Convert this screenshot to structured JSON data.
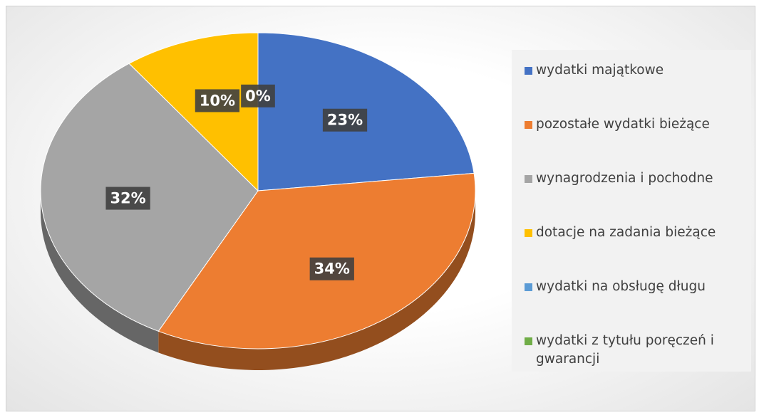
{
  "chart_data": {
    "type": "pie",
    "categories": [
      "wydatki majątkowe",
      "pozostałe wydatki bieżące",
      "wynagrodzenia i pochodne",
      "dotacje na zadania bieżące",
      "wydatki na obsługę długu",
      "wydatki z tytułu poręczeń i gwarancji"
    ],
    "values": [
      23,
      34,
      32,
      10,
      0,
      0
    ],
    "value_labels": [
      "23%",
      "34%",
      "32%",
      "10%",
      "0%",
      null
    ],
    "colors": [
      "#4472c4",
      "#ed7d31",
      "#a5a5a5",
      "#ffc000",
      "#5b9bd5",
      "#70ad47"
    ],
    "legend": "right"
  }
}
